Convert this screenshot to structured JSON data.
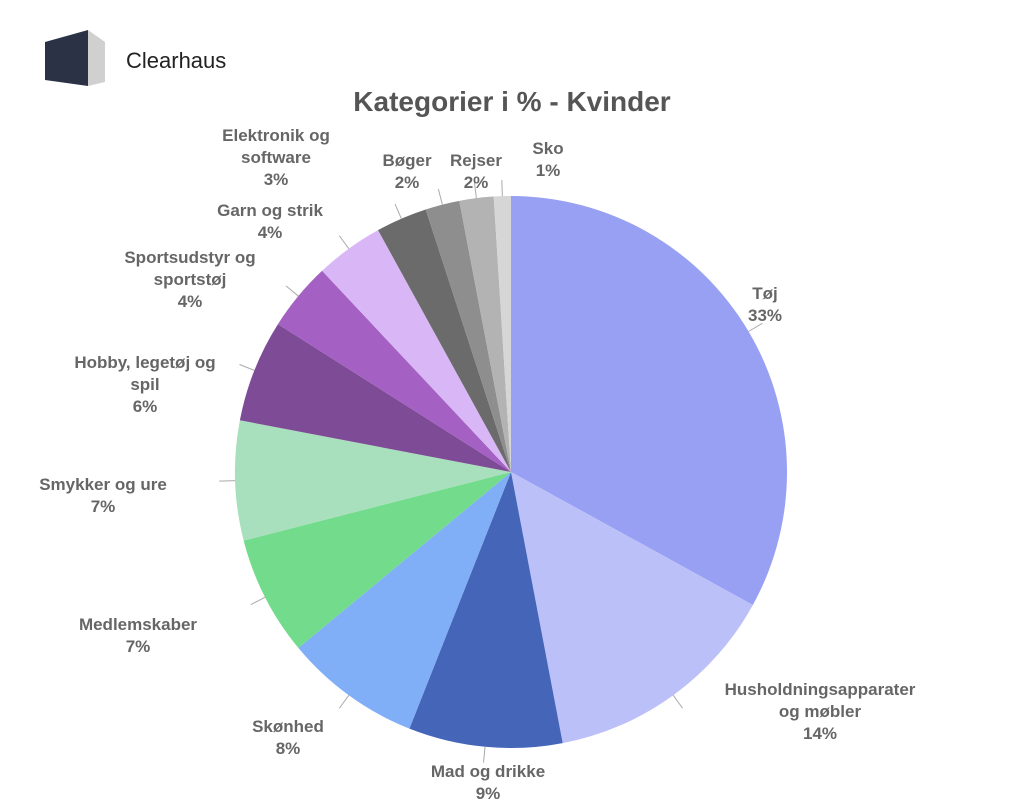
{
  "brand": "Clearhaus",
  "chart_data": {
    "type": "pie",
    "title": "Kategorier i % - Kvinder",
    "categories": [
      "Tøj",
      "Husholdningsapparater og møbler",
      "Mad og drikke",
      "Skønhed",
      "Medlemskaber",
      "Smykker og ure",
      "Hobby, legetøj og spil",
      "Sportsudstyr og sportstøj",
      "Garn og strik",
      "Elektronik og software",
      "Bøger",
      "Rejser",
      "Sko"
    ],
    "values": [
      33,
      14,
      9,
      8,
      7,
      7,
      6,
      4,
      4,
      3,
      2,
      2,
      1
    ],
    "value_labels": [
      "33%",
      "14%",
      "9%",
      "8%",
      "7%",
      "7%",
      "6%",
      "4%",
      "4%",
      "3%",
      "2%",
      "2%",
      "1%"
    ],
    "colors": [
      "#97a0f2",
      "#bcc0f8",
      "#4566b8",
      "#80aef7",
      "#72db8c",
      "#a8dfbc",
      "#7e4c96",
      "#a560c4",
      "#d9b7f6",
      "#6b6b6b",
      "#8e8e8e",
      "#b3b3b3",
      "#d6d6d6"
    ]
  }
}
